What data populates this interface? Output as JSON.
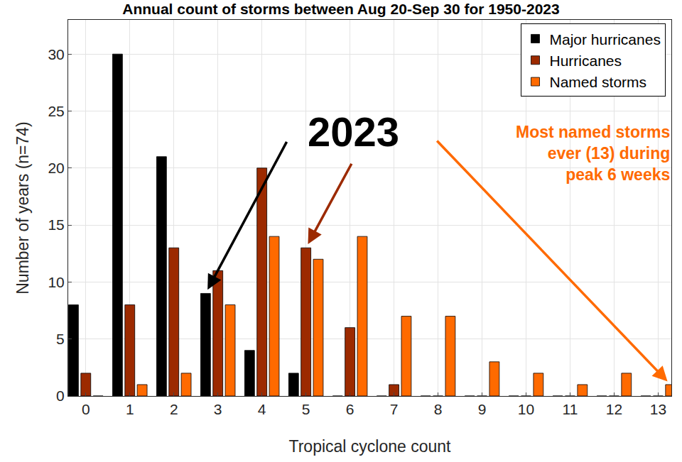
{
  "chart_data": {
    "type": "bar",
    "title": "Annual count of storms between Aug 20-Sep 30 for 1950-2023",
    "x_label": "Tropical cyclone count",
    "y_label": "Number of years (n=74)",
    "x": [
      0,
      1,
      2,
      3,
      4,
      5,
      6,
      7,
      8,
      9,
      10,
      11,
      12,
      13
    ],
    "series": [
      {
        "name": "Major hurricanes",
        "color": "#000000",
        "values": [
          8,
          30,
          21,
          9,
          4,
          2,
          0,
          0,
          0,
          0,
          0,
          0,
          0,
          0
        ]
      },
      {
        "name": "Hurricanes",
        "color": "#9c2a00",
        "values": [
          2,
          8,
          13,
          11,
          20,
          13,
          6,
          1,
          0,
          0,
          0,
          0,
          0,
          0
        ]
      },
      {
        "name": "Named storms",
        "color": "#ff6a00",
        "values": [
          0,
          1,
          2,
          8,
          14,
          12,
          14,
          7,
          7,
          3,
          2,
          1,
          2,
          1
        ]
      }
    ],
    "xlim": [
      -0.4,
      13.3
    ],
    "xticks": [
      0,
      1,
      2,
      3,
      4,
      5,
      6,
      7,
      8,
      9,
      10,
      11,
      12,
      13
    ],
    "ylim": [
      0,
      33
    ],
    "yticks": [
      0,
      5,
      10,
      15,
      20,
      25,
      30
    ],
    "grid": true,
    "legend": "top right",
    "annotations": [
      {
        "text": "2023",
        "color": "#000000",
        "points": [
          {
            "series": "Major hurricanes",
            "x": 3
          },
          {
            "series": "Hurricanes",
            "x": 5
          },
          {
            "series": "Named storms",
            "x": 13
          }
        ]
      },
      {
        "lines": [
          "Most named storms",
          "ever (13) during",
          "peak 6 weeks"
        ],
        "color": "#ff6a00"
      }
    ]
  }
}
